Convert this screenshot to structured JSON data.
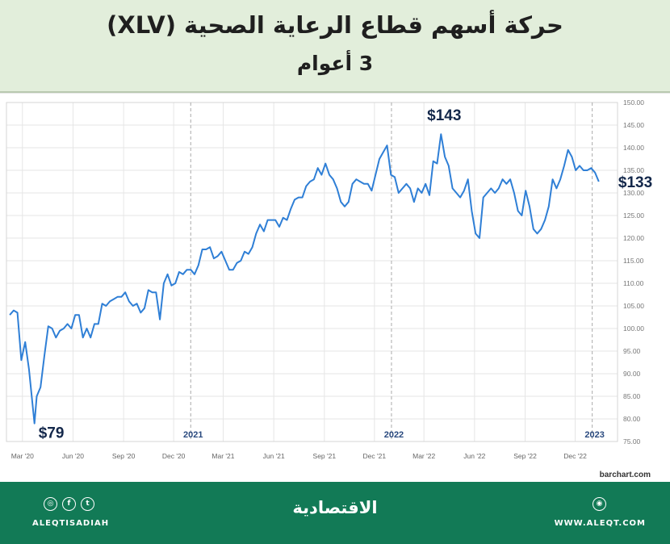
{
  "header": {
    "title": "حركة أسهم قطاع الرعاية الصحية (XLV)",
    "subtitle": "3 أعوام"
  },
  "chart_data": {
    "type": "line",
    "ylim": [
      75,
      150
    ],
    "y_ticks": [
      "75.00",
      "80.00",
      "85.00",
      "90.00",
      "95.00",
      "100.00",
      "105.00",
      "110.00",
      "115.00",
      "120.00",
      "125.00",
      "130.00",
      "135.00",
      "140.00",
      "145.00",
      "150.00"
    ],
    "x_tick_labels": [
      {
        "label": "Mar '20",
        "x": "2020-03"
      },
      {
        "label": "Jun '20",
        "x": "2020-06"
      },
      {
        "label": "Sep '20",
        "x": "2020-09"
      },
      {
        "label": "Dec '20",
        "x": "2020-12"
      },
      {
        "label": "Mar '21",
        "x": "2021-03"
      },
      {
        "label": "Jun '21",
        "x": "2021-06"
      },
      {
        "label": "Sep '21",
        "x": "2021-09"
      },
      {
        "label": "Dec '21",
        "x": "2021-12"
      },
      {
        "label": "Mar '22",
        "x": "2022-03"
      },
      {
        "label": "Jun '22",
        "x": "2022-06"
      },
      {
        "label": "Sep '22",
        "x": "2022-09"
      },
      {
        "label": "Dec '22",
        "x": "2022-12"
      }
    ],
    "year_markers": [
      {
        "label": "2021",
        "x": "2021-01"
      },
      {
        "label": "2022",
        "x": "2022-01"
      },
      {
        "label": "2023",
        "x": "2023-01"
      }
    ],
    "annotations": [
      {
        "text": "$79",
        "x": "2020-03-23",
        "y": 79
      },
      {
        "text": "$143",
        "x": "2022-04-01",
        "y": 143
      },
      {
        "text": "$133",
        "x": "2023-02-10",
        "y": 133
      }
    ],
    "series": [
      {
        "color": "#2f7fd6",
        "points": [
          [
            "2020-02-07",
            103
          ],
          [
            "2020-02-14",
            104
          ],
          [
            "2020-02-21",
            103.5
          ],
          [
            "2020-02-28",
            93
          ],
          [
            "2020-03-06",
            97
          ],
          [
            "2020-03-13",
            91
          ],
          [
            "2020-03-23",
            79
          ],
          [
            "2020-03-27",
            85
          ],
          [
            "2020-04-03",
            87
          ],
          [
            "2020-04-10",
            94
          ],
          [
            "2020-04-17",
            100.5
          ],
          [
            "2020-04-24",
            100
          ],
          [
            "2020-05-01",
            98
          ],
          [
            "2020-05-08",
            99.5
          ],
          [
            "2020-05-15",
            100
          ],
          [
            "2020-05-22",
            101
          ],
          [
            "2020-05-29",
            100
          ],
          [
            "2020-06-05",
            103
          ],
          [
            "2020-06-12",
            103
          ],
          [
            "2020-06-19",
            98
          ],
          [
            "2020-06-26",
            100
          ],
          [
            "2020-07-03",
            98
          ],
          [
            "2020-07-10",
            101
          ],
          [
            "2020-07-17",
            101
          ],
          [
            "2020-07-24",
            105.5
          ],
          [
            "2020-07-31",
            105
          ],
          [
            "2020-08-07",
            106
          ],
          [
            "2020-08-14",
            106.5
          ],
          [
            "2020-08-21",
            107
          ],
          [
            "2020-08-28",
            107
          ],
          [
            "2020-09-04",
            108
          ],
          [
            "2020-09-11",
            106
          ],
          [
            "2020-09-18",
            105
          ],
          [
            "2020-09-25",
            105.5
          ],
          [
            "2020-10-02",
            103.5
          ],
          [
            "2020-10-09",
            104.5
          ],
          [
            "2020-10-16",
            108.5
          ],
          [
            "2020-10-23",
            108
          ],
          [
            "2020-10-30",
            108
          ],
          [
            "2020-11-06",
            102
          ],
          [
            "2020-11-13",
            110
          ],
          [
            "2020-11-20",
            112
          ],
          [
            "2020-11-27",
            109.5
          ],
          [
            "2020-12-04",
            110
          ],
          [
            "2020-12-11",
            112.5
          ],
          [
            "2020-12-18",
            112
          ],
          [
            "2020-12-25",
            113
          ],
          [
            "2021-01-01",
            113
          ],
          [
            "2021-01-08",
            112
          ],
          [
            "2021-01-15",
            114
          ],
          [
            "2021-01-22",
            117.5
          ],
          [
            "2021-01-29",
            117.5
          ],
          [
            "2021-02-05",
            118
          ],
          [
            "2021-02-12",
            115.5
          ],
          [
            "2021-02-19",
            116
          ],
          [
            "2021-02-26",
            117
          ],
          [
            "2021-03-05",
            115
          ],
          [
            "2021-03-12",
            113
          ],
          [
            "2021-03-19",
            113
          ],
          [
            "2021-03-26",
            114.5
          ],
          [
            "2021-04-02",
            115
          ],
          [
            "2021-04-09",
            117
          ],
          [
            "2021-04-16",
            116.5
          ],
          [
            "2021-04-23",
            118
          ],
          [
            "2021-04-30",
            121
          ],
          [
            "2021-05-07",
            123
          ],
          [
            "2021-05-14",
            121.5
          ],
          [
            "2021-05-21",
            124
          ],
          [
            "2021-05-28",
            124
          ],
          [
            "2021-06-04",
            124
          ],
          [
            "2021-06-11",
            122.5
          ],
          [
            "2021-06-18",
            124.5
          ],
          [
            "2021-06-25",
            124
          ],
          [
            "2021-07-02",
            126.5
          ],
          [
            "2021-07-09",
            128.5
          ],
          [
            "2021-07-16",
            129
          ],
          [
            "2021-07-23",
            129
          ],
          [
            "2021-07-30",
            131.5
          ],
          [
            "2021-08-06",
            132.5
          ],
          [
            "2021-08-13",
            133
          ],
          [
            "2021-08-20",
            135.5
          ],
          [
            "2021-08-27",
            134
          ],
          [
            "2021-09-03",
            136.5
          ],
          [
            "2021-09-10",
            134
          ],
          [
            "2021-09-17",
            133
          ],
          [
            "2021-09-24",
            131
          ],
          [
            "2021-10-01",
            128
          ],
          [
            "2021-10-08",
            127
          ],
          [
            "2021-10-15",
            128
          ],
          [
            "2021-10-22",
            132
          ],
          [
            "2021-10-29",
            133
          ],
          [
            "2021-11-05",
            132.5
          ],
          [
            "2021-11-12",
            132
          ],
          [
            "2021-11-19",
            132
          ],
          [
            "2021-11-26",
            130.5
          ],
          [
            "2021-12-03",
            134
          ],
          [
            "2021-12-10",
            137.5
          ],
          [
            "2021-12-17",
            139
          ],
          [
            "2021-12-24",
            140.5
          ],
          [
            "2021-12-31",
            134
          ],
          [
            "2022-01-07",
            133.5
          ],
          [
            "2022-01-14",
            130
          ],
          [
            "2022-01-21",
            131
          ],
          [
            "2022-01-28",
            132
          ],
          [
            "2022-02-04",
            131
          ],
          [
            "2022-02-11",
            128
          ],
          [
            "2022-02-18",
            131
          ],
          [
            "2022-02-25",
            130
          ],
          [
            "2022-03-04",
            132
          ],
          [
            "2022-03-11",
            129.5
          ],
          [
            "2022-03-18",
            137
          ],
          [
            "2022-03-25",
            136.5
          ],
          [
            "2022-04-01",
            143
          ],
          [
            "2022-04-08",
            138
          ],
          [
            "2022-04-15",
            136
          ],
          [
            "2022-04-22",
            131
          ],
          [
            "2022-04-29",
            130
          ],
          [
            "2022-05-06",
            129
          ],
          [
            "2022-05-13",
            130.5
          ],
          [
            "2022-05-20",
            133
          ],
          [
            "2022-05-27",
            126
          ],
          [
            "2022-06-03",
            121
          ],
          [
            "2022-06-10",
            120
          ],
          [
            "2022-06-17",
            129
          ],
          [
            "2022-06-24",
            130
          ],
          [
            "2022-07-01",
            131
          ],
          [
            "2022-07-08",
            130
          ],
          [
            "2022-07-15",
            131
          ],
          [
            "2022-07-22",
            133
          ],
          [
            "2022-07-29",
            132
          ],
          [
            "2022-08-05",
            133
          ],
          [
            "2022-08-12",
            130
          ],
          [
            "2022-08-19",
            126
          ],
          [
            "2022-08-26",
            125
          ],
          [
            "2022-09-02",
            130.5
          ],
          [
            "2022-09-09",
            127
          ],
          [
            "2022-09-16",
            122
          ],
          [
            "2022-09-23",
            121
          ],
          [
            "2022-09-30",
            122
          ],
          [
            "2022-10-07",
            124
          ],
          [
            "2022-10-14",
            127
          ],
          [
            "2022-10-21",
            133
          ],
          [
            "2022-10-28",
            131
          ],
          [
            "2022-11-04",
            133
          ],
          [
            "2022-11-11",
            136
          ],
          [
            "2022-11-18",
            139.5
          ],
          [
            "2022-11-25",
            138
          ],
          [
            "2022-12-02",
            135
          ],
          [
            "2022-12-09",
            136
          ],
          [
            "2022-12-16",
            135
          ],
          [
            "2022-12-23",
            135
          ],
          [
            "2022-12-30",
            135.5
          ],
          [
            "2023-01-06",
            134.5
          ],
          [
            "2023-01-13",
            132.5
          ]
        ]
      }
    ]
  },
  "source": "barchart.com",
  "footer": {
    "brand": "الاقتصادية",
    "handle": "ALEQTISADIAH",
    "website": "WWW.ALEQT.COM",
    "icons": [
      "instagram-icon",
      "facebook-icon",
      "twitter-icon",
      "globe-icon"
    ]
  }
}
